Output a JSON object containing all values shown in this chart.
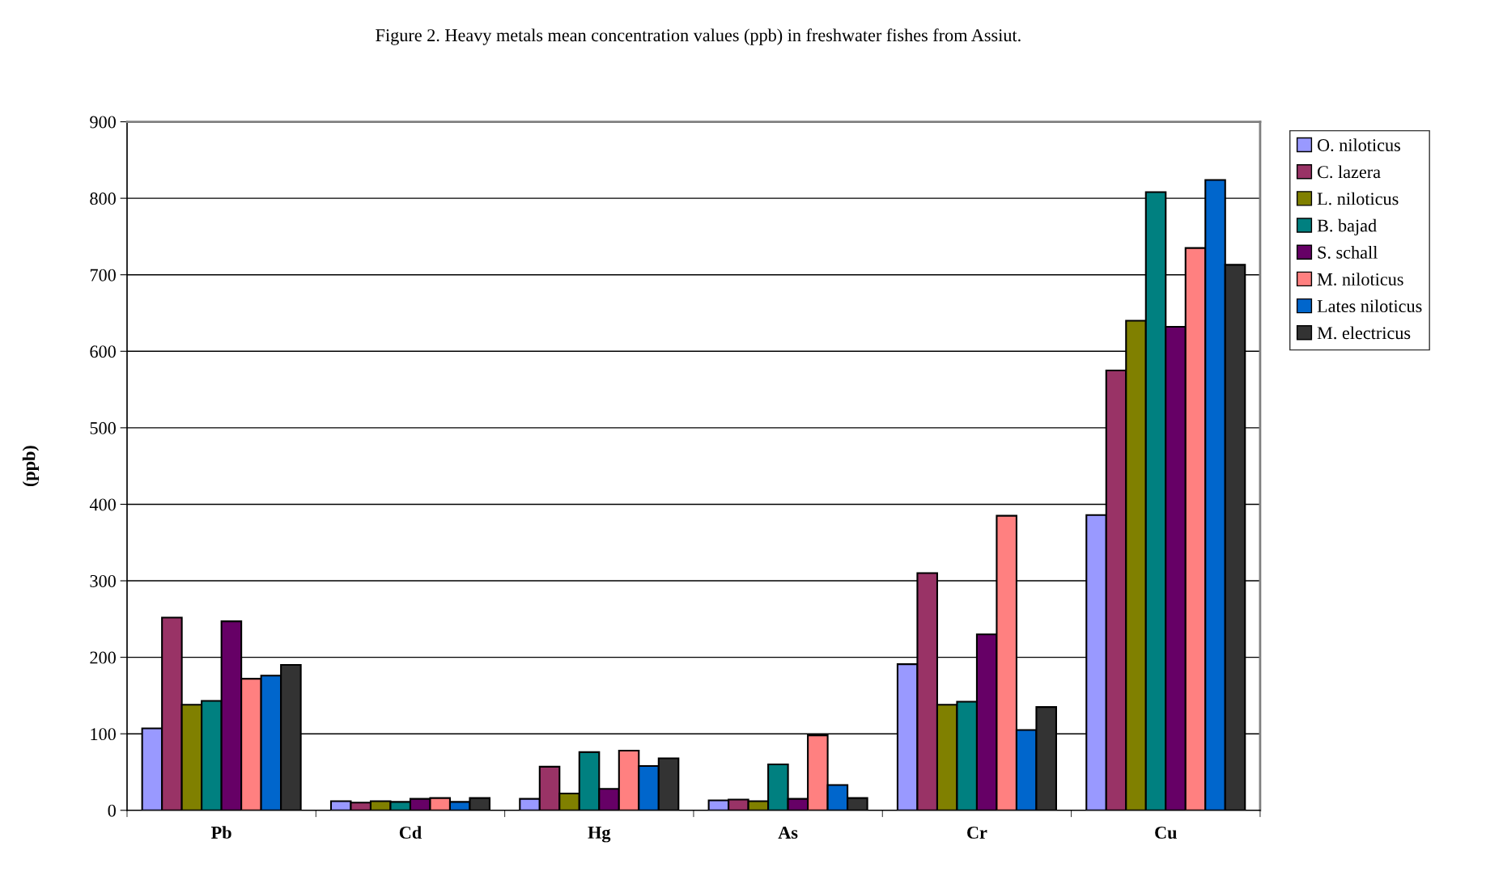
{
  "chart_data": {
    "type": "bar",
    "title": "Figure 2. Heavy metals mean concentration values (ppb) in freshwater fishes from Assiut.",
    "ylabel": "(ppb)",
    "categories": [
      "Pb",
      "Cd",
      "Hg",
      "As",
      "Cr",
      "Cu"
    ],
    "series": [
      {
        "name": "O. niloticus",
        "color": "#9999ff",
        "values": [
          107,
          12,
          15,
          13,
          191,
          386
        ]
      },
      {
        "name": "C. lazera",
        "color": "#993366",
        "values": [
          252,
          10,
          57,
          14,
          310,
          575
        ]
      },
      {
        "name": "L. niloticus",
        "color": "#808000",
        "values": [
          138,
          12,
          22,
          12,
          138,
          640
        ]
      },
      {
        "name": "B. bajad",
        "color": "#008080",
        "values": [
          143,
          11,
          76,
          60,
          142,
          808
        ]
      },
      {
        "name": "S. schall",
        "color": "#660066",
        "values": [
          247,
          15,
          28,
          15,
          230,
          632
        ]
      },
      {
        "name": "M. niloticus",
        "color": "#ff8080",
        "values": [
          172,
          16,
          78,
          98,
          385,
          735
        ]
      },
      {
        "name": "Lates niloticus",
        "color": "#0066cc",
        "values": [
          176,
          11,
          58,
          33,
          105,
          824
        ]
      },
      {
        "name": "M. electricus",
        "color": "#333333",
        "values": [
          190,
          16,
          68,
          16,
          135,
          713
        ]
      }
    ],
    "ylim": [
      0,
      900
    ],
    "yticks": [
      0,
      100,
      200,
      300,
      400,
      500,
      600,
      700,
      800,
      900
    ],
    "grid": "y",
    "legend": "right"
  }
}
